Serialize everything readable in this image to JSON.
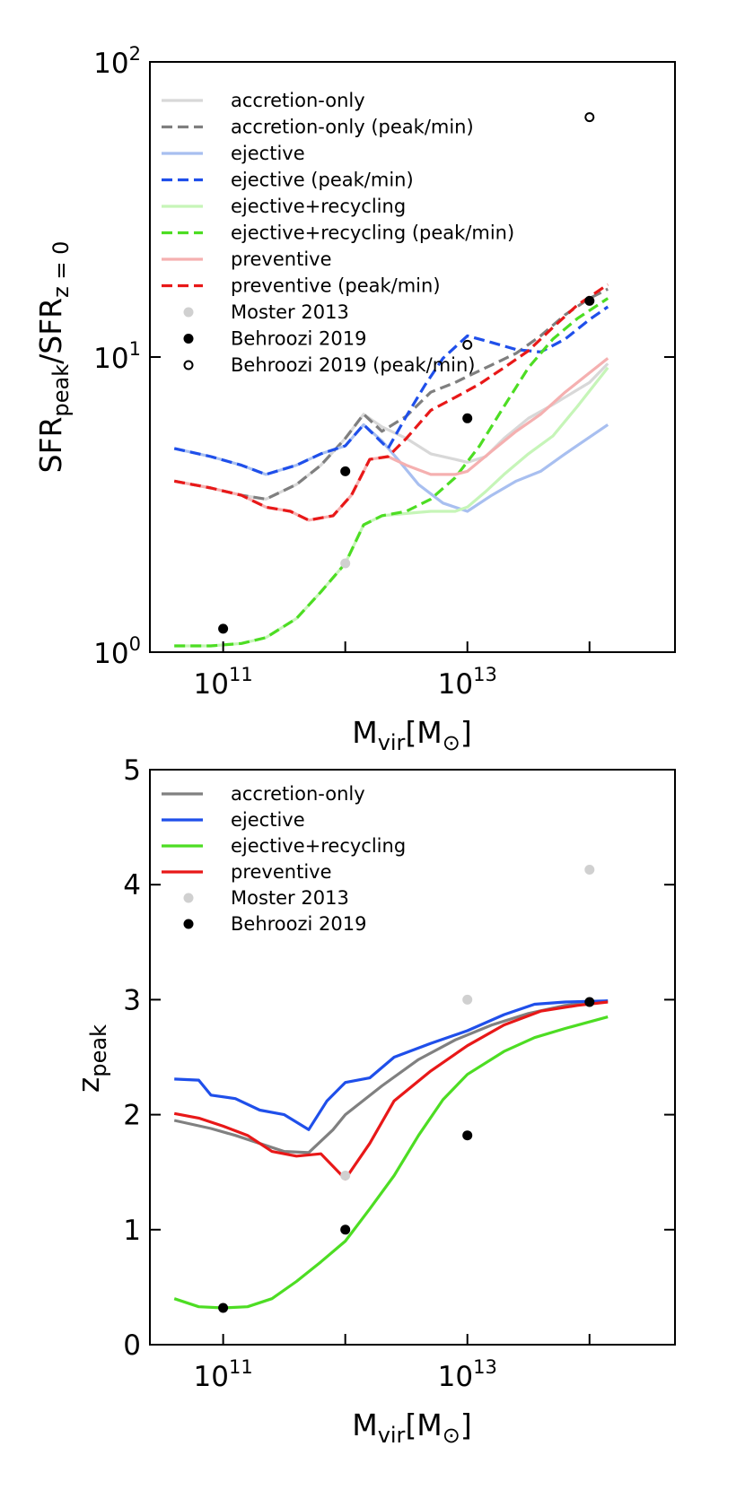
{
  "chart_data": [
    {
      "type": "line",
      "id": "top",
      "xlabel": "M_vir[M_⊙]",
      "ylabel": "SFR_peak/SFR_z=0",
      "xscale": "log",
      "yscale": "log",
      "xlim_log10": [
        10.4,
        14.7
      ],
      "ylim": [
        1,
        100
      ],
      "x_ticks": [
        {
          "base": "10",
          "exp": "11",
          "log10": 11
        },
        {
          "base": "10",
          "exp": "13",
          "log10": 13
        }
      ],
      "y_ticks": [
        {
          "base": "10",
          "exp": "0",
          "value": 1
        },
        {
          "base": "10",
          "exp": "1",
          "value": 10
        },
        {
          "base": "10",
          "exp": "2",
          "value": 100
        }
      ],
      "legend_position": "top-left",
      "series": [
        {
          "name": "accretion-only",
          "color": "#d8d8d8",
          "style": "solid",
          "points": [
            [
              10.6,
              3.8
            ],
            [
              10.9,
              3.6
            ],
            [
              11.15,
              3.4
            ],
            [
              11.35,
              3.3
            ],
            [
              11.6,
              3.7
            ],
            [
              11.8,
              4.3
            ],
            [
              12.0,
              5.3
            ],
            [
              12.15,
              6.4
            ],
            [
              12.3,
              5.8
            ],
            [
              12.5,
              5.3
            ],
            [
              12.7,
              4.7
            ],
            [
              12.9,
              4.5
            ],
            [
              13.0,
              4.4
            ],
            [
              13.15,
              4.6
            ],
            [
              13.3,
              5.3
            ],
            [
              13.5,
              6.2
            ],
            [
              13.7,
              6.9
            ],
            [
              14.0,
              8.2
            ],
            [
              14.15,
              9.5
            ]
          ]
        },
        {
          "name": "accretion-only (peak/min)",
          "color": "#7f7f7f",
          "style": "dashed",
          "points": [
            [
              10.6,
              3.8
            ],
            [
              10.9,
              3.6
            ],
            [
              11.15,
              3.4
            ],
            [
              11.35,
              3.3
            ],
            [
              11.6,
              3.7
            ],
            [
              11.8,
              4.3
            ],
            [
              12.0,
              5.3
            ],
            [
              12.15,
              6.4
            ],
            [
              12.3,
              5.6
            ],
            [
              12.5,
              6.3
            ],
            [
              12.7,
              7.6
            ],
            [
              12.9,
              8.2
            ],
            [
              13.0,
              8.6
            ],
            [
              13.2,
              9.4
            ],
            [
              13.4,
              10.3
            ],
            [
              13.6,
              11.8
            ],
            [
              13.8,
              13.9
            ],
            [
              14.0,
              15.8
            ],
            [
              14.15,
              17.0
            ]
          ]
        },
        {
          "name": "ejective",
          "color": "#a8bff0",
          "style": "solid",
          "points": [
            [
              10.6,
              4.9
            ],
            [
              10.9,
              4.6
            ],
            [
              11.15,
              4.3
            ],
            [
              11.35,
              4.0
            ],
            [
              11.6,
              4.3
            ],
            [
              11.8,
              4.7
            ],
            [
              12.0,
              5.0
            ],
            [
              12.15,
              5.9
            ],
            [
              12.3,
              5.2
            ],
            [
              12.45,
              4.4
            ],
            [
              12.6,
              3.7
            ],
            [
              12.8,
              3.2
            ],
            [
              13.0,
              3.0
            ],
            [
              13.2,
              3.4
            ],
            [
              13.4,
              3.8
            ],
            [
              13.6,
              4.1
            ],
            [
              13.8,
              4.7
            ],
            [
              14.15,
              5.9
            ]
          ]
        },
        {
          "name": "ejective (peak/min)",
          "color": "#1f4fea",
          "style": "dashed",
          "points": [
            [
              10.6,
              4.9
            ],
            [
              10.9,
              4.6
            ],
            [
              11.15,
              4.3
            ],
            [
              11.35,
              4.0
            ],
            [
              11.6,
              4.3
            ],
            [
              11.8,
              4.7
            ],
            [
              12.0,
              5.0
            ],
            [
              12.15,
              5.9
            ],
            [
              12.35,
              4.9
            ],
            [
              12.5,
              6.3
            ],
            [
              12.65,
              8.0
            ],
            [
              12.8,
              9.9
            ],
            [
              13.0,
              11.8
            ],
            [
              13.2,
              11.2
            ],
            [
              13.4,
              10.6
            ],
            [
              13.6,
              10.4
            ],
            [
              13.8,
              11.5
            ],
            [
              14.0,
              13.4
            ],
            [
              14.15,
              14.8
            ]
          ]
        },
        {
          "name": "ejective+recycling",
          "color": "#c6f5b8",
          "style": "solid",
          "points": [
            [
              10.6,
              1.05
            ],
            [
              10.9,
              1.05
            ],
            [
              11.15,
              1.07
            ],
            [
              11.35,
              1.12
            ],
            [
              11.6,
              1.3
            ],
            [
              11.8,
              1.6
            ],
            [
              12.0,
              2.0
            ],
            [
              12.15,
              2.7
            ],
            [
              12.3,
              2.9
            ],
            [
              12.5,
              2.95
            ],
            [
              12.7,
              3.0
            ],
            [
              12.9,
              3.0
            ],
            [
              13.0,
              3.1
            ],
            [
              13.15,
              3.5
            ],
            [
              13.3,
              4.0
            ],
            [
              13.5,
              4.7
            ],
            [
              13.7,
              5.4
            ],
            [
              13.9,
              6.8
            ],
            [
              14.15,
              9.2
            ]
          ]
        },
        {
          "name": "ejective+recycling (peak/min)",
          "color": "#4ddd23",
          "style": "dashed",
          "points": [
            [
              10.6,
              1.05
            ],
            [
              10.9,
              1.05
            ],
            [
              11.15,
              1.07
            ],
            [
              11.35,
              1.12
            ],
            [
              11.6,
              1.3
            ],
            [
              11.8,
              1.6
            ],
            [
              12.0,
              2.0
            ],
            [
              12.15,
              2.7
            ],
            [
              12.3,
              2.9
            ],
            [
              12.5,
              3.0
            ],
            [
              12.7,
              3.3
            ],
            [
              12.9,
              3.9
            ],
            [
              13.1,
              5.0
            ],
            [
              13.3,
              6.8
            ],
            [
              13.5,
              9.2
            ],
            [
              13.7,
              11.5
            ],
            [
              13.9,
              13.5
            ],
            [
              14.15,
              15.8
            ]
          ]
        },
        {
          "name": "preventive",
          "color": "#f5b0b0",
          "style": "solid",
          "points": [
            [
              10.6,
              3.8
            ],
            [
              10.9,
              3.6
            ],
            [
              11.15,
              3.4
            ],
            [
              11.35,
              3.1
            ],
            [
              11.55,
              3.0
            ],
            [
              11.7,
              2.8
            ],
            [
              11.9,
              2.9
            ],
            [
              12.05,
              3.4
            ],
            [
              12.2,
              4.5
            ],
            [
              12.35,
              4.6
            ],
            [
              12.5,
              4.3
            ],
            [
              12.7,
              4.0
            ],
            [
              12.9,
              4.0
            ],
            [
              13.0,
              4.1
            ],
            [
              13.2,
              4.8
            ],
            [
              13.4,
              5.6
            ],
            [
              13.6,
              6.4
            ],
            [
              13.8,
              7.6
            ],
            [
              14.15,
              9.9
            ]
          ]
        },
        {
          "name": "preventive (peak/min)",
          "color": "#e81818",
          "style": "dashed",
          "points": [
            [
              10.6,
              3.8
            ],
            [
              10.9,
              3.6
            ],
            [
              11.15,
              3.4
            ],
            [
              11.35,
              3.1
            ],
            [
              11.55,
              3.0
            ],
            [
              11.7,
              2.8
            ],
            [
              11.9,
              2.9
            ],
            [
              12.05,
              3.4
            ],
            [
              12.2,
              4.5
            ],
            [
              12.35,
              4.6
            ],
            [
              12.5,
              5.3
            ],
            [
              12.7,
              6.6
            ],
            [
              12.9,
              7.3
            ],
            [
              13.1,
              8.1
            ],
            [
              13.3,
              9.2
            ],
            [
              13.5,
              10.5
            ],
            [
              13.7,
              12.6
            ],
            [
              13.9,
              15.0
            ],
            [
              14.15,
              17.6
            ]
          ]
        }
      ],
      "points": [
        {
          "name": "Moster 2013",
          "marker": "filled",
          "color": "#d0d0d0",
          "values": [
            [
              12.0,
              2.0
            ]
          ]
        },
        {
          "name": "Behroozi 2019",
          "marker": "filled",
          "color": "#000000",
          "values": [
            [
              11.0,
              1.2
            ],
            [
              12.0,
              4.1
            ],
            [
              13.0,
              6.2
            ],
            [
              14.0,
              15.5
            ]
          ]
        },
        {
          "name": "Behroozi 2019 (peak/min)",
          "marker": "open",
          "color": "#000000",
          "values": [
            [
              13.0,
              11.0
            ],
            [
              14.0,
              65.0
            ]
          ]
        }
      ]
    },
    {
      "type": "line",
      "id": "bottom",
      "xlabel": "M_vir[M_⊙]",
      "ylabel": "z_peak",
      "xscale": "log",
      "yscale": "linear",
      "xlim_log10": [
        10.4,
        14.7
      ],
      "ylim": [
        0,
        5
      ],
      "x_ticks": [
        {
          "base": "10",
          "exp": "11",
          "log10": 11
        },
        {
          "base": "10",
          "exp": "13",
          "log10": 13
        }
      ],
      "y_ticks": [
        "0",
        "1",
        "2",
        "3",
        "4",
        "5"
      ],
      "legend_position": "top-left",
      "series": [
        {
          "name": "accretion-only",
          "color": "#808080",
          "style": "solid",
          "points": [
            [
              10.6,
              1.95
            ],
            [
              10.9,
              1.88
            ],
            [
              11.1,
              1.82
            ],
            [
              11.3,
              1.75
            ],
            [
              11.5,
              1.68
            ],
            [
              11.7,
              1.67
            ],
            [
              11.9,
              1.87
            ],
            [
              12.0,
              2.0
            ],
            [
              12.3,
              2.25
            ],
            [
              12.6,
              2.48
            ],
            [
              12.9,
              2.65
            ],
            [
              13.2,
              2.78
            ],
            [
              13.5,
              2.88
            ],
            [
              13.8,
              2.95
            ],
            [
              14.15,
              2.99
            ]
          ]
        },
        {
          "name": "ejective",
          "color": "#1f4fea",
          "style": "solid",
          "points": [
            [
              10.6,
              2.31
            ],
            [
              10.8,
              2.3
            ],
            [
              10.9,
              2.17
            ],
            [
              11.1,
              2.14
            ],
            [
              11.3,
              2.04
            ],
            [
              11.5,
              2.0
            ],
            [
              11.7,
              1.87
            ],
            [
              11.85,
              2.12
            ],
            [
              12.0,
              2.28
            ],
            [
              12.2,
              2.32
            ],
            [
              12.4,
              2.5
            ],
            [
              12.7,
              2.62
            ],
            [
              13.0,
              2.73
            ],
            [
              13.3,
              2.87
            ],
            [
              13.55,
              2.96
            ],
            [
              13.8,
              2.98
            ],
            [
              14.15,
              2.99
            ]
          ]
        },
        {
          "name": "ejective+recycling",
          "color": "#4ddd23",
          "style": "solid",
          "points": [
            [
              10.6,
              0.4
            ],
            [
              10.8,
              0.33
            ],
            [
              11.0,
              0.32
            ],
            [
              11.2,
              0.33
            ],
            [
              11.4,
              0.4
            ],
            [
              11.6,
              0.55
            ],
            [
              11.8,
              0.72
            ],
            [
              12.0,
              0.9
            ],
            [
              12.2,
              1.18
            ],
            [
              12.4,
              1.47
            ],
            [
              12.6,
              1.82
            ],
            [
              12.8,
              2.13
            ],
            [
              13.0,
              2.35
            ],
            [
              13.3,
              2.55
            ],
            [
              13.55,
              2.67
            ],
            [
              13.8,
              2.75
            ],
            [
              14.15,
              2.85
            ]
          ]
        },
        {
          "name": "preventive",
          "color": "#e81818",
          "style": "solid",
          "points": [
            [
              10.6,
              2.01
            ],
            [
              10.8,
              1.97
            ],
            [
              11.0,
              1.9
            ],
            [
              11.2,
              1.82
            ],
            [
              11.4,
              1.68
            ],
            [
              11.6,
              1.64
            ],
            [
              11.8,
              1.66
            ],
            [
              12.0,
              1.44
            ],
            [
              12.2,
              1.75
            ],
            [
              12.4,
              2.12
            ],
            [
              12.7,
              2.38
            ],
            [
              13.0,
              2.6
            ],
            [
              13.3,
              2.78
            ],
            [
              13.6,
              2.9
            ],
            [
              13.9,
              2.95
            ],
            [
              14.15,
              2.98
            ]
          ]
        }
      ],
      "points": [
        {
          "name": "Moster 2013",
          "marker": "filled",
          "color": "#d0d0d0",
          "values": [
            [
              12.0,
              1.47
            ],
            [
              13.0,
              3.0
            ],
            [
              14.0,
              4.13
            ]
          ]
        },
        {
          "name": "Behroozi 2019",
          "marker": "filled",
          "color": "#000000",
          "values": [
            [
              11.0,
              0.32
            ],
            [
              12.0,
              1.0
            ],
            [
              13.0,
              1.82
            ],
            [
              14.0,
              2.98
            ]
          ]
        }
      ]
    }
  ]
}
